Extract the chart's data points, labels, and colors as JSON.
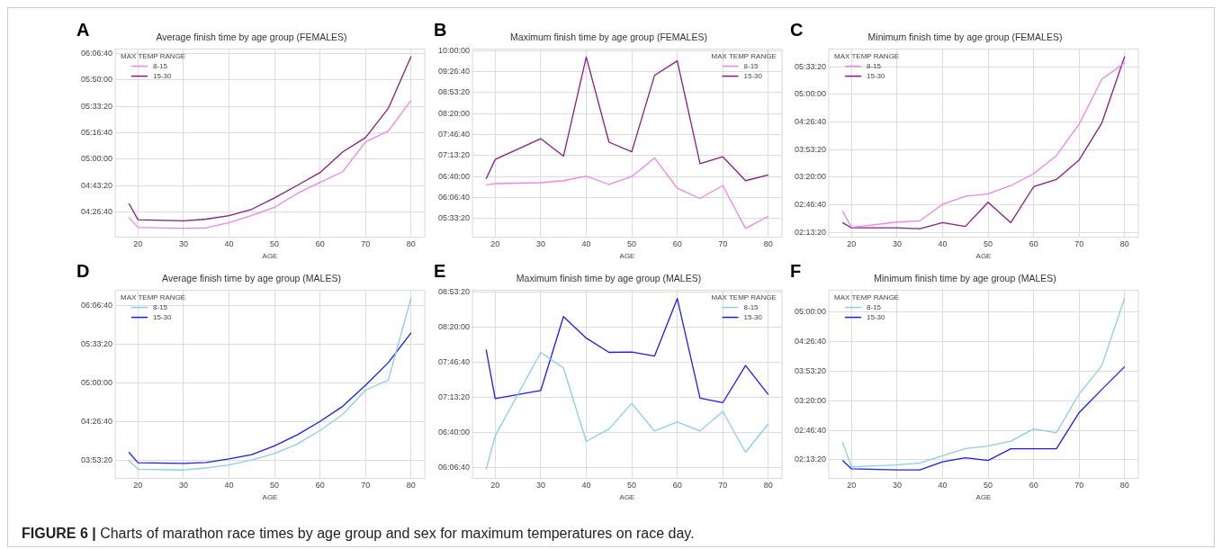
{
  "chart_data": [
    {
      "type": "line",
      "title": "Average finish time by age group (FEMALES)",
      "xlabel": "AGE",
      "legend_title": "MAX TEMP RANGE",
      "legend": "top left",
      "grid": true,
      "marker": "none",
      "line_style": "solid",
      "annotations": [
        "A",
        "FIGURE 6 | Charts of marathon race times by age group and sex for maximum temperatures on race day."
      ],
      "x": [
        18,
        20,
        30,
        35,
        40,
        45,
        50,
        55,
        60,
        65,
        70,
        75,
        80
      ],
      "xlim": [
        15,
        83
      ],
      "xticks": [
        20,
        30,
        40,
        50,
        60,
        70,
        80
      ],
      "ylim": [
        4.181,
        6.157
      ],
      "yticks": [
        {
          "value": 4.4444,
          "label": "04:26:40"
        },
        {
          "value": 4.7222,
          "label": "04:43:20"
        },
        {
          "value": 5,
          "label": "05:00:00"
        },
        {
          "value": 5.2778,
          "label": "05:16:40"
        },
        {
          "value": 5.5556,
          "label": "05:33:20"
        },
        {
          "value": 5.8333,
          "label": "05:50:00"
        },
        {
          "value": 6.1111,
          "label": "06:06:40"
        }
      ],
      "series": [
        {
          "name": "8-15",
          "color": "#ee82ee",
          "values": [
            4.389,
            4.285,
            4.273,
            4.279,
            4.334,
            4.411,
            4.496,
            4.641,
            4.757,
            4.87,
            5.183,
            5.296,
            5.621
          ]
        },
        {
          "name": "15-30",
          "color": "#8b1a89",
          "values": [
            4.536,
            4.365,
            4.353,
            4.371,
            4.408,
            4.475,
            4.594,
            4.726,
            4.861,
            5.078,
            5.228,
            5.535,
            6.08
          ]
        }
      ]
    },
    {
      "type": "line",
      "title": "Maximum finish time by age group (FEMALES)",
      "xlabel": "AGE",
      "legend_title": "MAX TEMP RANGE",
      "legend": "top right",
      "grid": true,
      "marker": "none",
      "line_style": "solid",
      "annotations": [
        "B"
      ],
      "x": [
        18,
        20,
        30,
        35,
        40,
        45,
        50,
        55,
        60,
        65,
        70,
        75,
        80
      ],
      "xlim": [
        15,
        83
      ],
      "xticks": [
        20,
        30,
        40,
        50,
        60,
        70,
        80
      ],
      "ylim": [
        5.062,
        10.04
      ],
      "yticks": [
        {
          "value": 5.5556,
          "label": "05:33:20"
        },
        {
          "value": 6.1111,
          "label": "06:06:40"
        },
        {
          "value": 6.6667,
          "label": "06:40:00"
        },
        {
          "value": 7.2222,
          "label": "07:13:20"
        },
        {
          "value": 7.7778,
          "label": "07:46:40"
        },
        {
          "value": 8.3333,
          "label": "08:20:00"
        },
        {
          "value": 8.8889,
          "label": "08:53:20"
        },
        {
          "value": 9.4444,
          "label": "09:26:40"
        },
        {
          "value": 10,
          "label": "10:00:00"
        }
      ],
      "series": [
        {
          "name": "8-15",
          "color": "#ee82ee",
          "values": [
            6.451,
            6.481,
            6.505,
            6.559,
            6.682,
            6.458,
            6.667,
            7.161,
            6.358,
            6.088,
            6.428,
            5.293,
            5.617
          ]
        },
        {
          "name": "15-30",
          "color": "#8b1a89",
          "values": [
            6.605,
            7.122,
            7.67,
            7.207,
            9.83,
            7.577,
            7.323,
            9.344,
            9.73,
            7.006,
            7.191,
            6.559,
            6.713
          ]
        }
      ]
    },
    {
      "type": "line",
      "title": "Minimum finish time by age group (FEMALES)",
      "xlabel": "AGE",
      "legend_title": "MAX TEMP RANGE",
      "legend": "top left",
      "grid": true,
      "marker": "none",
      "line_style": "solid",
      "annotations": [
        "C"
      ],
      "x": [
        18,
        20,
        30,
        35,
        40,
        45,
        50,
        55,
        60,
        65,
        70,
        75,
        80
      ],
      "xlim": [
        15,
        83
      ],
      "xticks": [
        20,
        30,
        40,
        50,
        60,
        70,
        80
      ],
      "ylim": [
        2.128,
        5.909
      ],
      "yticks": [
        {
          "value": 2.2222,
          "label": "02:13:20"
        },
        {
          "value": 2.7778,
          "label": "02:46:40"
        },
        {
          "value": 3.3333,
          "label": "03:20:00"
        },
        {
          "value": 3.8889,
          "label": "03:53:20"
        },
        {
          "value": 4.4444,
          "label": "04:26:40"
        },
        {
          "value": 5,
          "label": "05:00:00"
        },
        {
          "value": 5.5556,
          "label": "05:33:20"
        }
      ],
      "series": [
        {
          "name": "8-15",
          "color": "#ee82ee",
          "values": [
            2.656,
            2.328,
            2.433,
            2.457,
            2.791,
            2.949,
            3.002,
            3.166,
            3.406,
            3.769,
            4.403,
            5.305,
            5.633
          ]
        },
        {
          "name": "15-30",
          "color": "#8b1a89",
          "values": [
            2.421,
            2.316,
            2.316,
            2.298,
            2.421,
            2.345,
            2.832,
            2.421,
            3.143,
            3.289,
            3.682,
            4.426,
            5.762
          ]
        }
      ]
    },
    {
      "type": "line",
      "title": "Average finish time by age group (MALES)",
      "xlabel": "AGE",
      "legend_title": "MAX TEMP RANGE",
      "legend": "top left",
      "grid": true,
      "marker": "none",
      "line_style": "solid",
      "annotations": [
        "D"
      ],
      "x": [
        18,
        20,
        30,
        35,
        40,
        45,
        50,
        55,
        60,
        65,
        70,
        75,
        80
      ],
      "xlim": [
        15,
        83
      ],
      "xticks": [
        20,
        30,
        40,
        50,
        60,
        70,
        80
      ],
      "ylim": [
        3.626,
        6.324
      ],
      "yticks": [
        {
          "value": 3.8889,
          "label": "03:53:20"
        },
        {
          "value": 4.4444,
          "label": "04:26:40"
        },
        {
          "value": 5,
          "label": "05:00:00"
        },
        {
          "value": 5.5556,
          "label": "05:33:20"
        },
        {
          "value": 6.1111,
          "label": "06:06:40"
        }
      ],
      "series": [
        {
          "name": "8-15",
          "color": "#87ceeb",
          "values": [
            3.881,
            3.759,
            3.747,
            3.776,
            3.818,
            3.889,
            3.985,
            4.119,
            4.315,
            4.545,
            4.892,
            5.038,
            6.216
          ]
        },
        {
          "name": "15-30",
          "color": "#1a1aff",
          "values": [
            4.002,
            3.851,
            3.843,
            3.856,
            3.906,
            3.968,
            4.094,
            4.252,
            4.444,
            4.662,
            4.963,
            5.288,
            5.715
          ]
        }
      ]
    },
    {
      "type": "line",
      "title": "Maximum finish time by age group (MALES)",
      "xlabel": "AGE",
      "legend_title": "MAX TEMP RANGE",
      "legend": "top right",
      "grid": true,
      "marker": "none",
      "line_style": "solid",
      "annotations": [
        "E"
      ],
      "x": [
        18,
        20,
        30,
        35,
        40,
        45,
        50,
        55,
        60,
        65,
        70,
        75,
        80
      ],
      "xlim": [
        15,
        83
      ],
      "xticks": [
        20,
        30,
        40,
        50,
        60,
        70,
        80
      ],
      "ylim": [
        5.933,
        8.914
      ],
      "yticks": [
        {
          "value": 6.1111,
          "label": "06:06:40"
        },
        {
          "value": 6.6667,
          "label": "06:40:00"
        },
        {
          "value": 7.2222,
          "label": "07:13:20"
        },
        {
          "value": 7.7778,
          "label": "07:46:40"
        },
        {
          "value": 8.3333,
          "label": "08:20:00"
        },
        {
          "value": 8.8889,
          "label": "08:53:20"
        }
      ],
      "series": [
        {
          "name": "8-15",
          "color": "#87ceeb",
          "values": [
            6.071,
            6.607,
            7.931,
            7.686,
            6.519,
            6.718,
            7.123,
            6.685,
            6.828,
            6.685,
            6.994,
            6.348,
            6.801
          ]
        },
        {
          "name": "15-30",
          "color": "#1a1aff",
          "values": [
            7.977,
            7.197,
            7.326,
            8.498,
            8.157,
            7.931,
            7.936,
            7.871,
            8.784,
            7.206,
            7.133,
            7.723,
            7.263
          ]
        }
      ]
    },
    {
      "type": "line",
      "title": "Minimum finish time by age group (MALES)",
      "xlabel": "AGE",
      "legend_title": "MAX TEMP RANGE",
      "legend": "top left",
      "grid": true,
      "marker": "none",
      "line_style": "solid",
      "annotations": [
        "F"
      ],
      "x": [
        18,
        20,
        30,
        35,
        40,
        45,
        50,
        55,
        60,
        65,
        70,
        75,
        80
      ],
      "xlim": [
        15,
        83
      ],
      "xticks": [
        20,
        30,
        40,
        50,
        60,
        70,
        80
      ],
      "ylim": [
        1.872,
        5.41
      ],
      "yticks": [
        {
          "value": 2.2222,
          "label": "02:13:20"
        },
        {
          "value": 2.7778,
          "label": "02:46:40"
        },
        {
          "value": 3.3333,
          "label": "03:20:00"
        },
        {
          "value": 3.8889,
          "label": "03:53:20"
        },
        {
          "value": 4.4444,
          "label": "04:26:40"
        },
        {
          "value": 5,
          "label": "05:00:00"
        }
      ],
      "series": [
        {
          "name": "8-15",
          "color": "#87ceeb",
          "values": [
            2.556,
            2.091,
            2.124,
            2.162,
            2.299,
            2.436,
            2.48,
            2.573,
            2.803,
            2.732,
            3.46,
            3.997,
            5.268
          ]
        },
        {
          "name": "15-30",
          "color": "#1a1aff",
          "values": [
            2.211,
            2.053,
            2.031,
            2.031,
            2.184,
            2.261,
            2.211,
            2.43,
            2.43,
            2.43,
            3.11,
            3.548,
            3.975
          ]
        }
      ]
    }
  ]
}
